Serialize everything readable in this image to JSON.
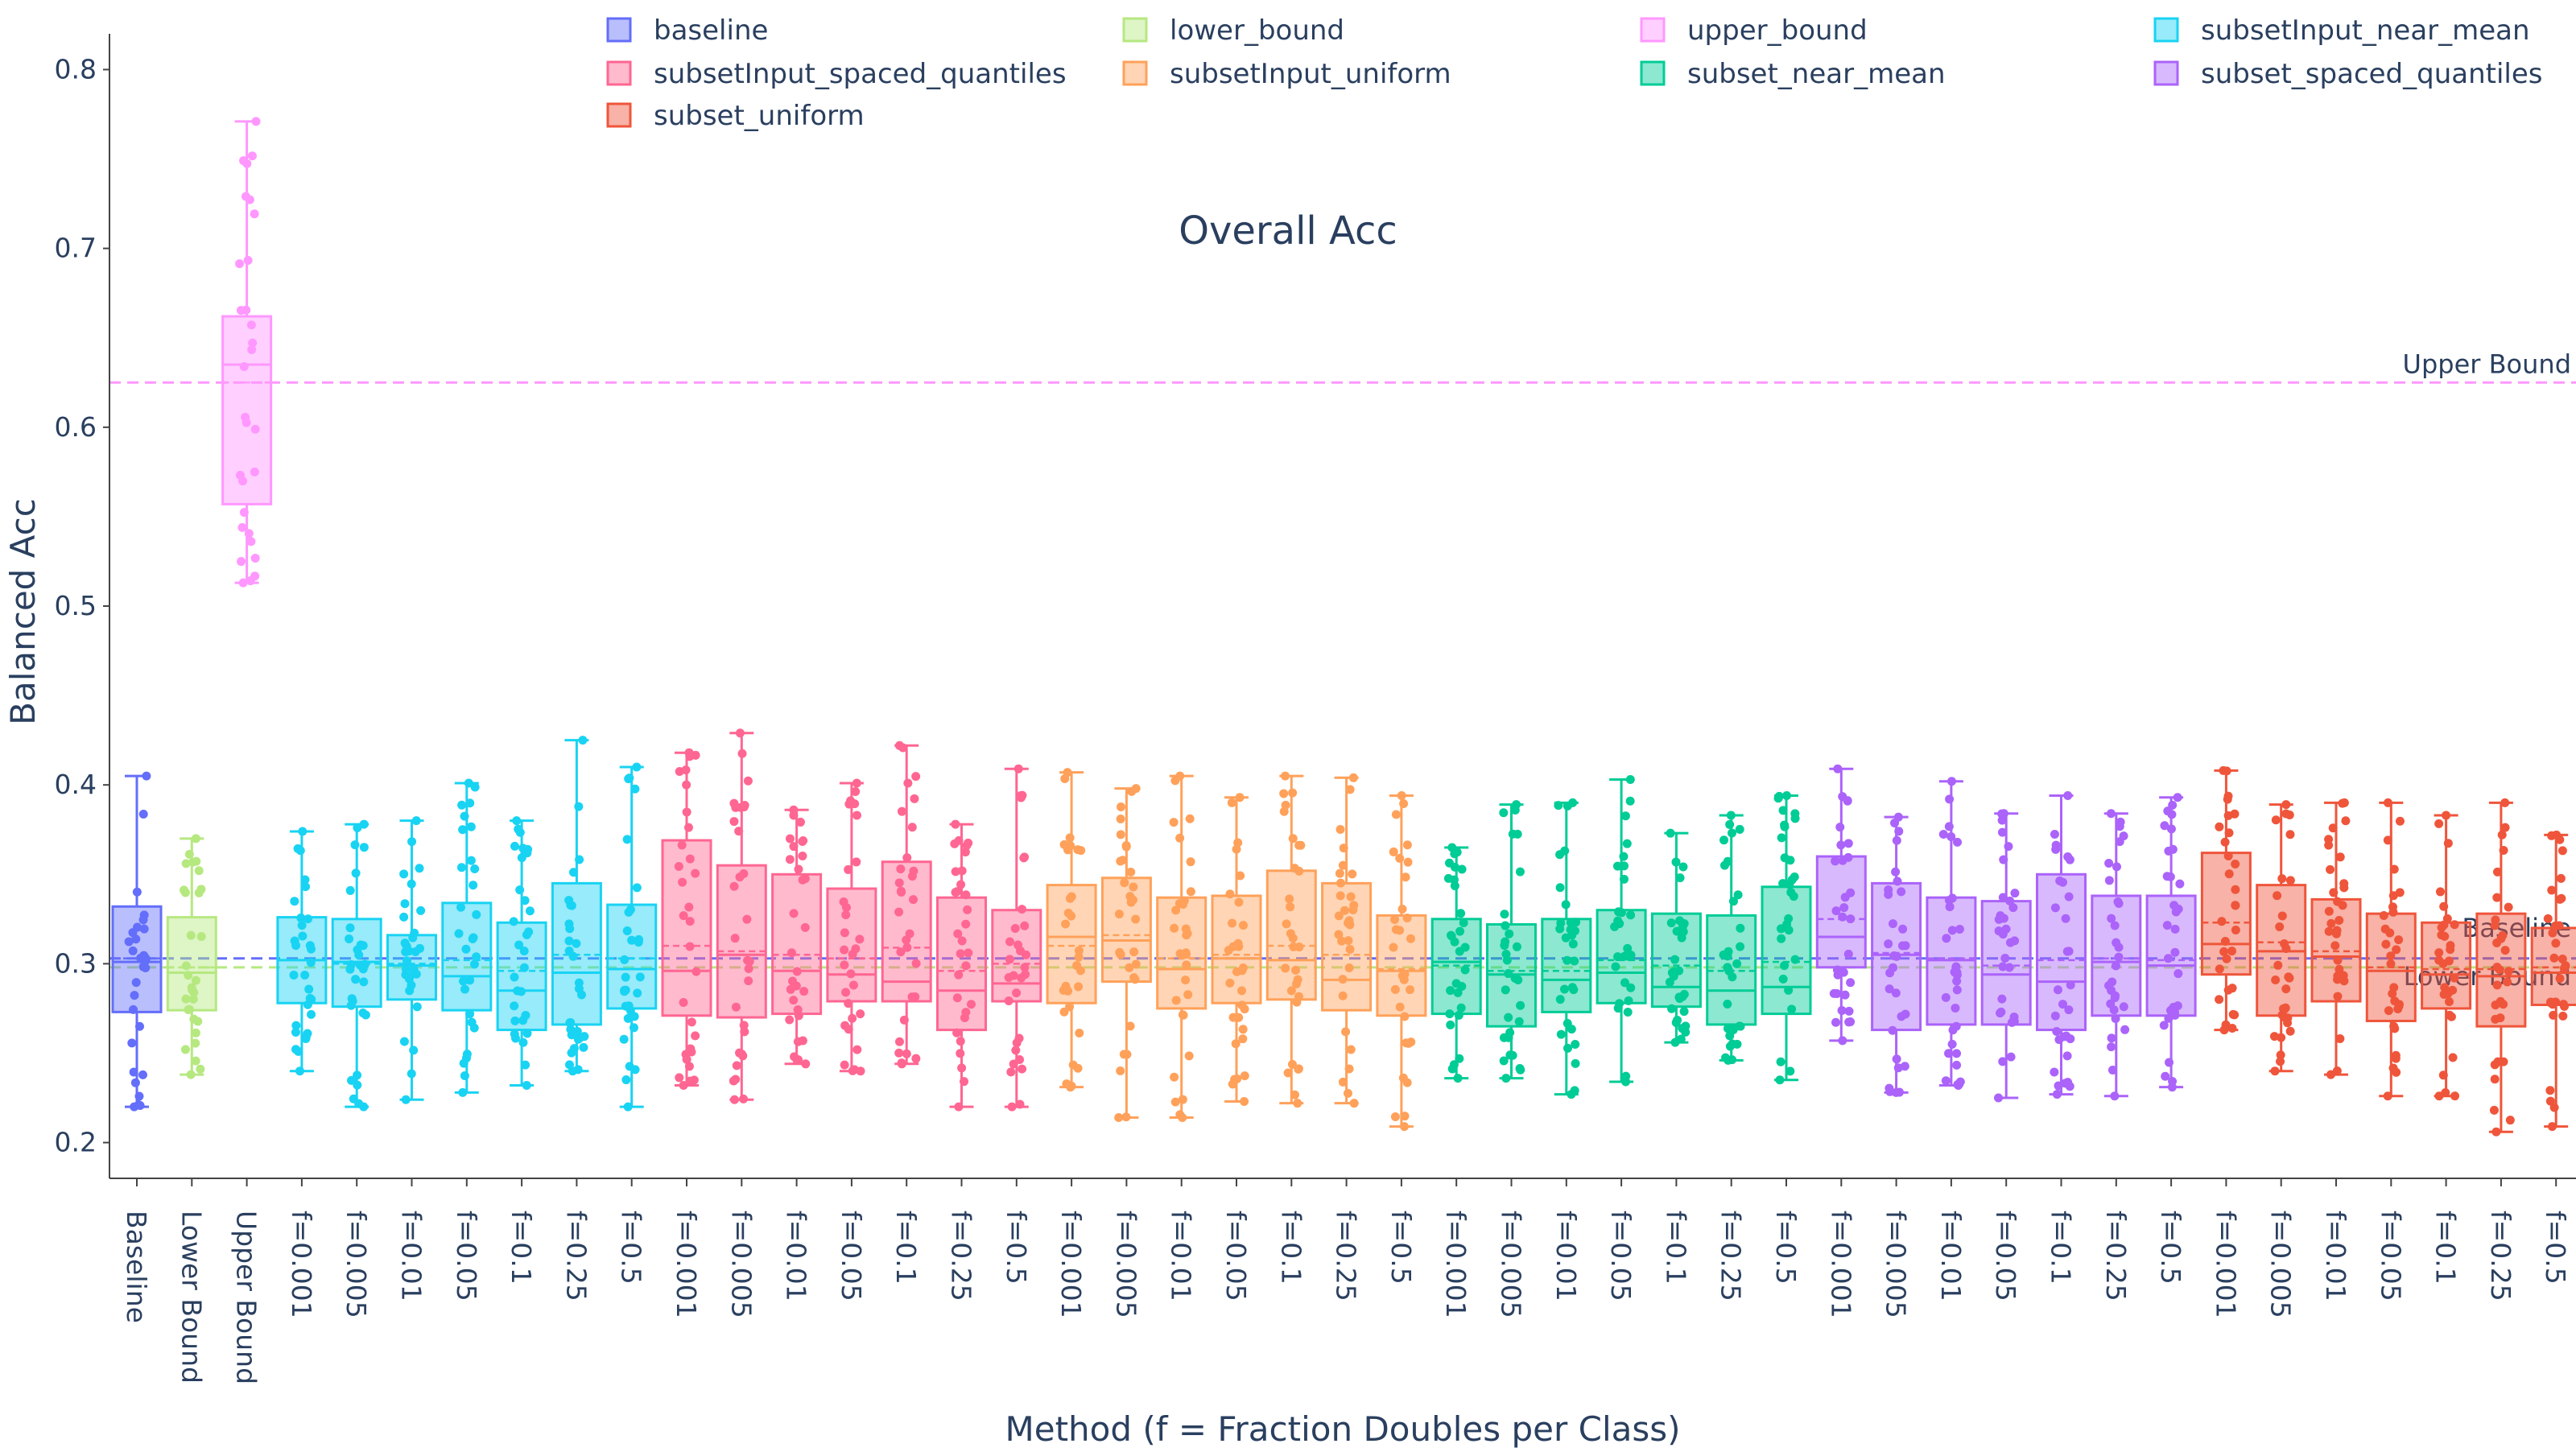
{
  "chart_data": {
    "type": "box",
    "title": "Overall Acc",
    "xlabel": "Method (f = Fraction Doubles per Class)",
    "ylabel": "Balanced Acc",
    "ylim": [
      0.18,
      0.82
    ],
    "yticks": [
      "0.2",
      "0.3",
      "0.4",
      "0.5",
      "0.6",
      "0.7",
      "0.8"
    ],
    "ytick_values": [
      0.2,
      0.3,
      0.4,
      0.5,
      0.6,
      0.7,
      0.8
    ],
    "legend": [
      {
        "name": "baseline",
        "color": "#636efa"
      },
      {
        "name": "lower_bound",
        "color": "#b6e880"
      },
      {
        "name": "upper_bound",
        "color": "#ff97ff"
      },
      {
        "name": "subsetInput_near_mean",
        "color": "#19d3f3"
      },
      {
        "name": "subsetInput_spaced_quantiles",
        "color": "#ff6692"
      },
      {
        "name": "subsetInput_uniform",
        "color": "#ffa15a"
      },
      {
        "name": "subset_near_mean",
        "color": "#00cc96"
      },
      {
        "name": "subset_spaced_quantiles",
        "color": "#ab63fa"
      },
      {
        "name": "subset_uniform",
        "color": "#ef553b"
      }
    ],
    "reference_lines": [
      {
        "label": "Upper Bound",
        "value": 0.625,
        "color": "#ff97ff"
      },
      {
        "label": "Baseline",
        "value": 0.303,
        "color": "#636efa"
      },
      {
        "label": "Lower Bound",
        "value": 0.298,
        "color": "#b6e880"
      }
    ],
    "boxes": [
      {
        "label": "Baseline",
        "series": "baseline",
        "min": 0.22,
        "q1": 0.273,
        "median": 0.301,
        "q3": 0.332,
        "max": 0.405,
        "mean": 0.303
      },
      {
        "label": "Lower Bound",
        "series": "lower_bound",
        "min": 0.238,
        "q1": 0.274,
        "median": 0.295,
        "q3": 0.326,
        "max": 0.37,
        "mean": 0.298
      },
      {
        "label": "Upper Bound",
        "series": "upper_bound",
        "min": 0.513,
        "q1": 0.557,
        "median": 0.635,
        "q3": 0.662,
        "max": 0.771,
        "mean": 0.625
      },
      {
        "label": "f=0.001",
        "series": "subsetInput_near_mean",
        "min": 0.24,
        "q1": 0.278,
        "median": 0.302,
        "q3": 0.326,
        "max": 0.374,
        "mean": 0.302
      },
      {
        "label": "f=0.005",
        "series": "subsetInput_near_mean",
        "min": 0.22,
        "q1": 0.276,
        "median": 0.301,
        "q3": 0.325,
        "max": 0.378,
        "mean": 0.3
      },
      {
        "label": "f=0.01",
        "series": "subsetInput_near_mean",
        "min": 0.224,
        "q1": 0.28,
        "median": 0.299,
        "q3": 0.316,
        "max": 0.38,
        "mean": 0.3
      },
      {
        "label": "f=0.05",
        "series": "subsetInput_near_mean",
        "min": 0.228,
        "q1": 0.274,
        "median": 0.293,
        "q3": 0.334,
        "max": 0.401,
        "mean": 0.302
      },
      {
        "label": "f=0.1",
        "series": "subsetInput_near_mean",
        "min": 0.232,
        "q1": 0.263,
        "median": 0.285,
        "q3": 0.323,
        "max": 0.38,
        "mean": 0.296
      },
      {
        "label": "f=0.25",
        "series": "subsetInput_near_mean",
        "min": 0.24,
        "q1": 0.266,
        "median": 0.295,
        "q3": 0.345,
        "max": 0.425,
        "mean": 0.305
      },
      {
        "label": "f=0.5",
        "series": "subsetInput_near_mean",
        "min": 0.22,
        "q1": 0.275,
        "median": 0.297,
        "q3": 0.333,
        "max": 0.41,
        "mean": 0.303
      },
      {
        "label": "f=0.001",
        "series": "subsetInput_spaced_quantiles",
        "min": 0.232,
        "q1": 0.271,
        "median": 0.296,
        "q3": 0.369,
        "max": 0.418,
        "mean": 0.31
      },
      {
        "label": "f=0.005",
        "series": "subsetInput_spaced_quantiles",
        "min": 0.224,
        "q1": 0.27,
        "median": 0.305,
        "q3": 0.355,
        "max": 0.429,
        "mean": 0.307
      },
      {
        "label": "f=0.01",
        "series": "subsetInput_spaced_quantiles",
        "min": 0.244,
        "q1": 0.272,
        "median": 0.296,
        "q3": 0.35,
        "max": 0.386,
        "mean": 0.305
      },
      {
        "label": "f=0.05",
        "series": "subsetInput_spaced_quantiles",
        "min": 0.24,
        "q1": 0.279,
        "median": 0.294,
        "q3": 0.342,
        "max": 0.401,
        "mean": 0.303
      },
      {
        "label": "f=0.1",
        "series": "subsetInput_spaced_quantiles",
        "min": 0.244,
        "q1": 0.279,
        "median": 0.29,
        "q3": 0.357,
        "max": 0.422,
        "mean": 0.309
      },
      {
        "label": "f=0.25",
        "series": "subsetInput_spaced_quantiles",
        "min": 0.22,
        "q1": 0.263,
        "median": 0.285,
        "q3": 0.337,
        "max": 0.378,
        "mean": 0.296
      },
      {
        "label": "f=0.5",
        "series": "subsetInput_spaced_quantiles",
        "min": 0.22,
        "q1": 0.279,
        "median": 0.289,
        "q3": 0.33,
        "max": 0.409,
        "mean": 0.3
      },
      {
        "label": "f=0.001",
        "series": "subsetInput_uniform",
        "min": 0.231,
        "q1": 0.278,
        "median": 0.315,
        "q3": 0.344,
        "max": 0.407,
        "mean": 0.31
      },
      {
        "label": "f=0.005",
        "series": "subsetInput_uniform",
        "min": 0.214,
        "q1": 0.29,
        "median": 0.313,
        "q3": 0.348,
        "max": 0.398,
        "mean": 0.316
      },
      {
        "label": "f=0.01",
        "series": "subsetInput_uniform",
        "min": 0.214,
        "q1": 0.275,
        "median": 0.297,
        "q3": 0.337,
        "max": 0.405,
        "mean": 0.303
      },
      {
        "label": "f=0.05",
        "series": "subsetInput_uniform",
        "min": 0.223,
        "q1": 0.278,
        "median": 0.303,
        "q3": 0.338,
        "max": 0.393,
        "mean": 0.305
      },
      {
        "label": "f=0.1",
        "series": "subsetInput_uniform",
        "min": 0.222,
        "q1": 0.28,
        "median": 0.302,
        "q3": 0.352,
        "max": 0.405,
        "mean": 0.31
      },
      {
        "label": "f=0.25",
        "series": "subsetInput_uniform",
        "min": 0.222,
        "q1": 0.274,
        "median": 0.291,
        "q3": 0.345,
        "max": 0.404,
        "mean": 0.305
      },
      {
        "label": "f=0.5",
        "series": "subsetInput_uniform",
        "min": 0.209,
        "q1": 0.271,
        "median": 0.296,
        "q3": 0.327,
        "max": 0.394,
        "mean": 0.297
      },
      {
        "label": "f=0.001",
        "series": "subset_near_mean",
        "min": 0.236,
        "q1": 0.272,
        "median": 0.301,
        "q3": 0.325,
        "max": 0.365,
        "mean": 0.299
      },
      {
        "label": "f=0.005",
        "series": "subset_near_mean",
        "min": 0.236,
        "q1": 0.265,
        "median": 0.294,
        "q3": 0.322,
        "max": 0.389,
        "mean": 0.296
      },
      {
        "label": "f=0.01",
        "series": "subset_near_mean",
        "min": 0.227,
        "q1": 0.273,
        "median": 0.291,
        "q3": 0.325,
        "max": 0.39,
        "mean": 0.296
      },
      {
        "label": "f=0.05",
        "series": "subset_near_mean",
        "min": 0.234,
        "q1": 0.278,
        "median": 0.295,
        "q3": 0.33,
        "max": 0.403,
        "mean": 0.302
      },
      {
        "label": "f=0.1",
        "series": "subset_near_mean",
        "min": 0.256,
        "q1": 0.276,
        "median": 0.287,
        "q3": 0.328,
        "max": 0.373,
        "mean": 0.299
      },
      {
        "label": "f=0.25",
        "series": "subset_near_mean",
        "min": 0.246,
        "q1": 0.266,
        "median": 0.285,
        "q3": 0.327,
        "max": 0.383,
        "mean": 0.296
      },
      {
        "label": "f=0.5",
        "series": "subset_near_mean",
        "min": 0.235,
        "q1": 0.272,
        "median": 0.287,
        "q3": 0.343,
        "max": 0.394,
        "mean": 0.301
      },
      {
        "label": "f=0.001",
        "series": "subset_spaced_quantiles",
        "min": 0.257,
        "q1": 0.298,
        "median": 0.315,
        "q3": 0.36,
        "max": 0.409,
        "mean": 0.325
      },
      {
        "label": "f=0.005",
        "series": "subset_spaced_quantiles",
        "min": 0.228,
        "q1": 0.263,
        "median": 0.305,
        "q3": 0.345,
        "max": 0.382,
        "mean": 0.306
      },
      {
        "label": "f=0.01",
        "series": "subset_spaced_quantiles",
        "min": 0.232,
        "q1": 0.266,
        "median": 0.302,
        "q3": 0.337,
        "max": 0.402,
        "mean": 0.303
      },
      {
        "label": "f=0.05",
        "series": "subset_spaced_quantiles",
        "min": 0.225,
        "q1": 0.266,
        "median": 0.294,
        "q3": 0.335,
        "max": 0.384,
        "mean": 0.299
      },
      {
        "label": "f=0.1",
        "series": "subset_spaced_quantiles",
        "min": 0.227,
        "q1": 0.263,
        "median": 0.29,
        "q3": 0.35,
        "max": 0.394,
        "mean": 0.302
      },
      {
        "label": "f=0.25",
        "series": "subset_spaced_quantiles",
        "min": 0.226,
        "q1": 0.271,
        "median": 0.301,
        "q3": 0.338,
        "max": 0.384,
        "mean": 0.303
      },
      {
        "label": "f=0.5",
        "series": "subset_spaced_quantiles",
        "min": 0.231,
        "q1": 0.271,
        "median": 0.299,
        "q3": 0.338,
        "max": 0.393,
        "mean": 0.302
      },
      {
        "label": "f=0.001",
        "series": "subset_uniform",
        "min": 0.263,
        "q1": 0.294,
        "median": 0.311,
        "q3": 0.362,
        "max": 0.408,
        "mean": 0.323
      },
      {
        "label": "f=0.005",
        "series": "subset_uniform",
        "min": 0.24,
        "q1": 0.271,
        "median": 0.307,
        "q3": 0.344,
        "max": 0.389,
        "mean": 0.312
      },
      {
        "label": "f=0.01",
        "series": "subset_uniform",
        "min": 0.238,
        "q1": 0.279,
        "median": 0.304,
        "q3": 0.336,
        "max": 0.39,
        "mean": 0.307
      },
      {
        "label": "f=0.05",
        "series": "subset_uniform",
        "min": 0.226,
        "q1": 0.268,
        "median": 0.296,
        "q3": 0.328,
        "max": 0.39,
        "mean": 0.298
      },
      {
        "label": "f=0.1",
        "series": "subset_uniform",
        "min": 0.226,
        "q1": 0.275,
        "median": 0.294,
        "q3": 0.323,
        "max": 0.383,
        "mean": 0.297
      },
      {
        "label": "f=0.25",
        "series": "subset_uniform",
        "min": 0.206,
        "q1": 0.265,
        "median": 0.293,
        "q3": 0.328,
        "max": 0.39,
        "mean": 0.297
      },
      {
        "label": "f=0.5",
        "series": "subset_uniform",
        "min": 0.209,
        "q1": 0.277,
        "median": 0.295,
        "q3": 0.32,
        "max": 0.372,
        "mean": 0.298
      }
    ]
  }
}
